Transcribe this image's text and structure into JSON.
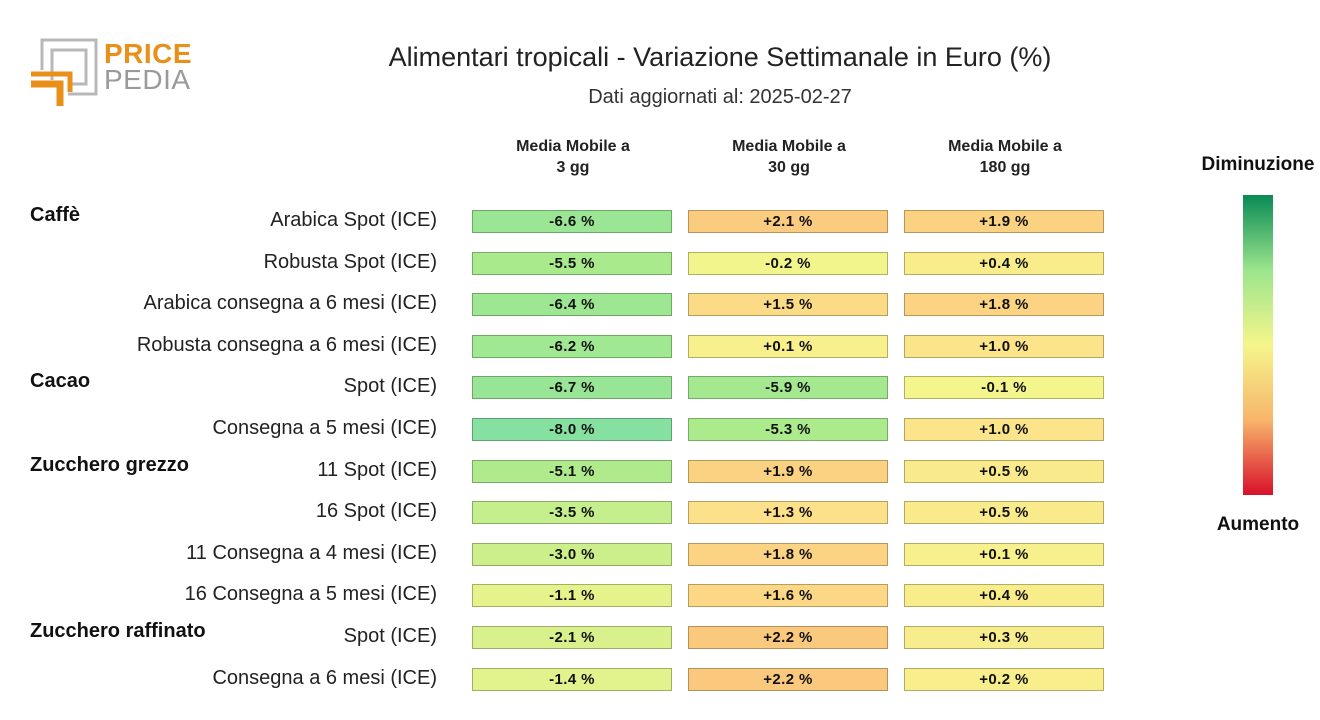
{
  "logo": {
    "line1": "PRICE",
    "line2": "PEDIA"
  },
  "title": "Alimentari tropicali - Variazione Settimanale in Euro (%)",
  "subtitle": "Dati aggiornati al: 2025-02-27",
  "columns": [
    {
      "line1": "Media Mobile a",
      "line2": "3 gg"
    },
    {
      "line1": "Media Mobile a",
      "line2": "30 gg"
    },
    {
      "line1": "Media Mobile a",
      "line2": "180 gg"
    }
  ],
  "legend": {
    "top": "Diminuzione",
    "bottom": "Aumento",
    "colors": [
      "#0a8a55",
      "#9be58c",
      "#f5f58c",
      "#f7b56b",
      "#d8102a"
    ]
  },
  "chart_data": {
    "type": "table",
    "title": "Alimentari tropicali - Variazione Settimanale in Euro (%)",
    "subtitle": "Dati aggiornati al: 2025-02-27",
    "unit": "%",
    "groups": [
      {
        "name": "Caffè",
        "rows": [
          {
            "label": "Arabica Spot (ICE)",
            "values": [
              -6.6,
              2.1,
              1.9
            ],
            "display": [
              "-6.6 %",
              "+2.1 %",
              "+1.9 %"
            ]
          },
          {
            "label": "Robusta Spot (ICE)",
            "values": [
              -5.5,
              -0.2,
              0.4
            ],
            "display": [
              "-5.5 %",
              "-0.2 %",
              "+0.4 %"
            ]
          },
          {
            "label": "Arabica consegna a 6 mesi (ICE)",
            "values": [
              -6.4,
              1.5,
              1.8
            ],
            "display": [
              "-6.4 %",
              "+1.5 %",
              "+1.8 %"
            ]
          },
          {
            "label": "Robusta consegna a 6 mesi (ICE)",
            "values": [
              -6.2,
              0.1,
              1.0
            ],
            "display": [
              "-6.2 %",
              "+0.1 %",
              "+1.0 %"
            ]
          }
        ]
      },
      {
        "name": "Cacao",
        "rows": [
          {
            "label": "Spot (ICE)",
            "values": [
              -6.7,
              -5.9,
              -0.1
            ],
            "display": [
              "-6.7 %",
              "-5.9 %",
              "-0.1 %"
            ]
          },
          {
            "label": "Consegna a 5 mesi (ICE)",
            "values": [
              -8.0,
              -5.3,
              1.0
            ],
            "display": [
              "-8.0 %",
              "-5.3 %",
              "+1.0 %"
            ]
          }
        ]
      },
      {
        "name": "Zucchero grezzo",
        "rows": [
          {
            "label": "11 Spot (ICE)",
            "values": [
              -5.1,
              1.9,
              0.5
            ],
            "display": [
              "-5.1 %",
              "+1.9 %",
              "+0.5 %"
            ]
          },
          {
            "label": "16 Spot (ICE)",
            "values": [
              -3.5,
              1.3,
              0.5
            ],
            "display": [
              "-3.5 %",
              "+1.3 %",
              "+0.5 %"
            ]
          },
          {
            "label": "11 Consegna a 4 mesi (ICE)",
            "values": [
              -3.0,
              1.8,
              0.1
            ],
            "display": [
              "-3.0 %",
              "+1.8 %",
              "+0.1 %"
            ]
          },
          {
            "label": "16 Consegna a 5 mesi (ICE)",
            "values": [
              -1.1,
              1.6,
              0.4
            ],
            "display": [
              "-1.1 %",
              "+1.6 %",
              "+0.4 %"
            ]
          }
        ]
      },
      {
        "name": "Zucchero raffinato",
        "rows": [
          {
            "label": "Spot (ICE)",
            "values": [
              -2.1,
              2.2,
              0.3
            ],
            "display": [
              "-2.1 %",
              "+2.2 %",
              "+0.3 %"
            ]
          },
          {
            "label": "Consegna a 6 mesi (ICE)",
            "values": [
              -1.4,
              2.2,
              0.2
            ],
            "display": [
              "-1.4 %",
              "+2.2 %",
              "+0.2 %"
            ]
          }
        ]
      }
    ]
  }
}
